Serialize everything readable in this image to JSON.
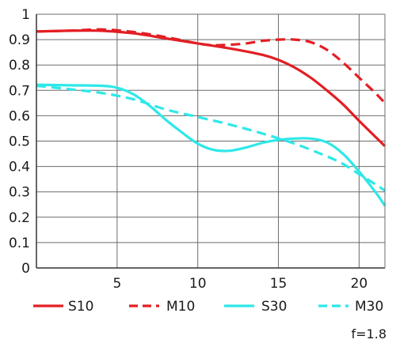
{
  "chart_data": {
    "type": "line",
    "xlim": [
      0,
      21.6
    ],
    "ylim": [
      0,
      1
    ],
    "x_ticks": [
      "5",
      "10",
      "15",
      "20"
    ],
    "y_ticks": [
      "0",
      "0.1",
      "0.2",
      "0.3",
      "0.4",
      "0.5",
      "0.6",
      "0.7",
      "0.8",
      "0.9",
      "1"
    ],
    "grid": true,
    "legend_position": "bottom",
    "series": [
      {
        "name": "S10",
        "color": "#e31e24",
        "dash": "solid",
        "x": [
          0,
          2,
          4,
          6,
          8,
          10,
          12,
          14,
          15,
          16,
          17,
          18,
          19,
          20,
          21.6
        ],
        "y": [
          0.932,
          0.935,
          0.935,
          0.925,
          0.905,
          0.885,
          0.865,
          0.84,
          0.82,
          0.79,
          0.75,
          0.7,
          0.645,
          0.58,
          0.48
        ]
      },
      {
        "name": "M10",
        "color": "#e31e24",
        "dash": "dashed",
        "x": [
          0,
          2,
          4,
          6,
          8,
          10,
          11,
          12,
          13,
          14,
          15,
          16,
          17,
          18,
          19,
          20,
          21,
          21.6
        ],
        "y": [
          0.932,
          0.935,
          0.94,
          0.93,
          0.91,
          0.885,
          0.878,
          0.88,
          0.885,
          0.895,
          0.9,
          0.9,
          0.89,
          0.86,
          0.81,
          0.75,
          0.69,
          0.65
        ]
      },
      {
        "name": "S30",
        "color": "#2ee8e8",
        "dash": "solid",
        "x": [
          0,
          2,
          4,
          5,
          6,
          7,
          8,
          9,
          10,
          11,
          12,
          13,
          14,
          15,
          16,
          17,
          18,
          19,
          20,
          21,
          21.6
        ],
        "y": [
          0.722,
          0.72,
          0.718,
          0.71,
          0.685,
          0.64,
          0.585,
          0.535,
          0.49,
          0.465,
          0.462,
          0.475,
          0.493,
          0.505,
          0.51,
          0.51,
          0.495,
          0.45,
          0.38,
          0.3,
          0.245
        ]
      },
      {
        "name": "M30",
        "color": "#2ee8e8",
        "dash": "dashed",
        "x": [
          0,
          2,
          4,
          6,
          8,
          10,
          12,
          14,
          16,
          18,
          19,
          20,
          21,
          21.6
        ],
        "y": [
          0.718,
          0.705,
          0.69,
          0.665,
          0.625,
          0.595,
          0.565,
          0.53,
          0.49,
          0.44,
          0.41,
          0.37,
          0.33,
          0.305
        ]
      }
    ],
    "annotation": "f=1.8"
  }
}
